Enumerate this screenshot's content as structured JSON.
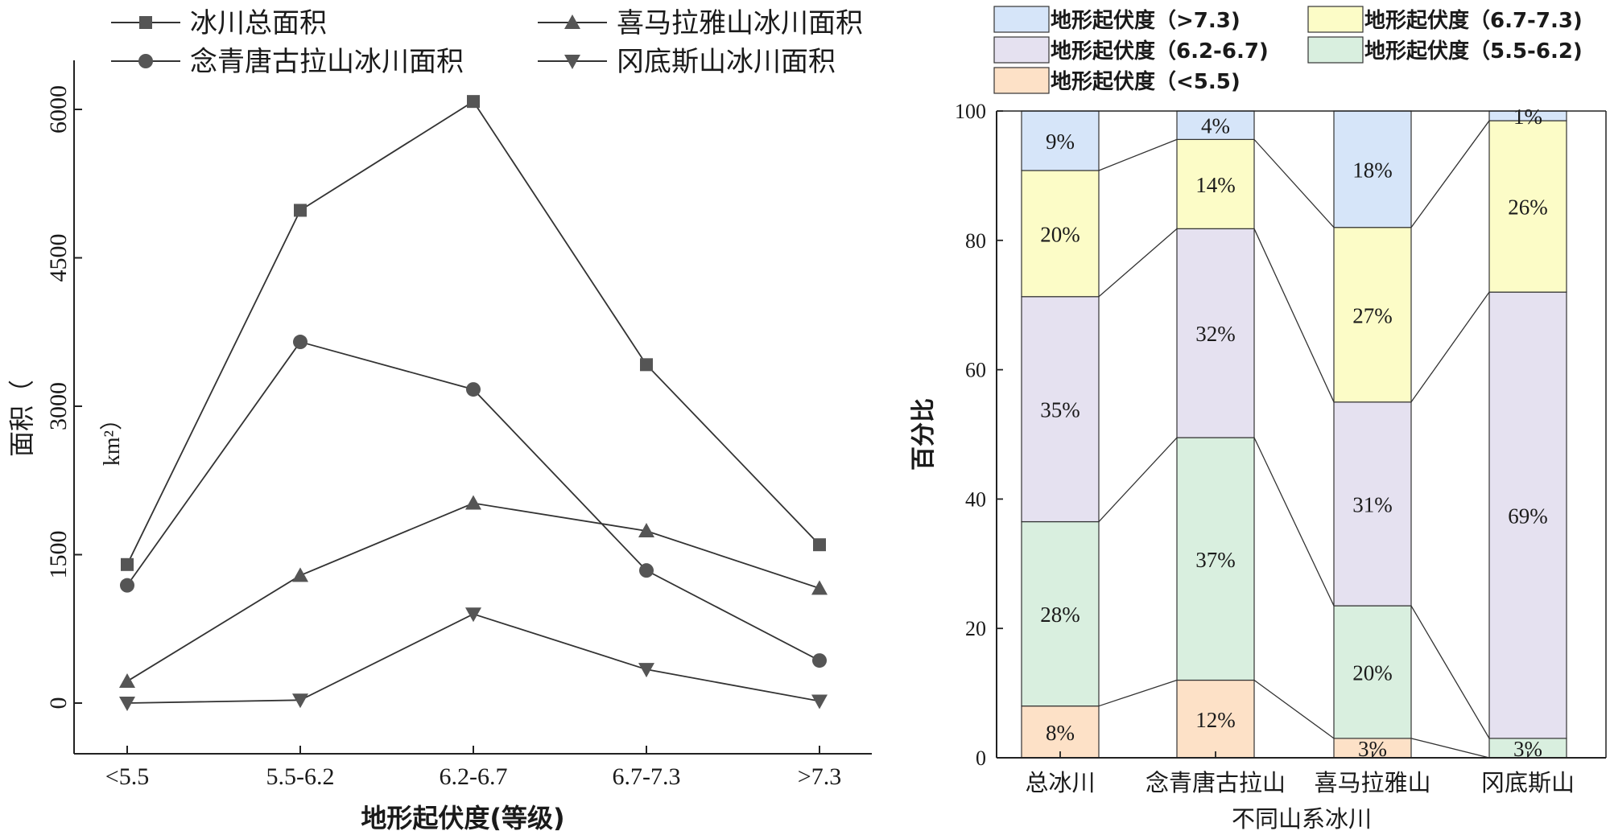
{
  "chart_data": [
    {
      "type": "line",
      "xlabel": "地形起伏度(等级)",
      "ylabel_part1": "面积（",
      "ylabel_part2": "km²）",
      "categories": [
        "<5.5",
        "5.5-6.2",
        "6.2-6.7",
        "6.7-7.3",
        ">7.3"
      ],
      "ylim": [
        -500,
        6500
      ],
      "yticks": [
        "0",
        "1500",
        "3000",
        "4500",
        "6000"
      ],
      "ytick_values": [
        0,
        1500,
        3000,
        4500,
        6000
      ],
      "legend_position": "top",
      "series": [
        {
          "name": "冰川总面积",
          "marker": "square",
          "values": [
            1400,
            4980,
            6080,
            3420,
            1600
          ]
        },
        {
          "name": "喜马拉雅山冰川面积",
          "marker": "triangle-up",
          "values": [
            220,
            1290,
            2020,
            1740,
            1160
          ]
        },
        {
          "name": "念青唐古拉山冰川面积",
          "marker": "circle",
          "values": [
            1190,
            3650,
            3170,
            1340,
            430
          ]
        },
        {
          "name": "冈底斯山冰川面积",
          "marker": "triangle-down",
          "values": [
            0,
            30,
            900,
            340,
            20
          ]
        }
      ]
    },
    {
      "type": "bar",
      "stacked": true,
      "xlabel": "不同山系冰川",
      "ylabel": "百分比",
      "categories": [
        "总冰川",
        "念青唐古拉山",
        "喜马拉雅山",
        "冈底斯山"
      ],
      "ylim": [
        0,
        100
      ],
      "yticks": [
        "0",
        "20",
        "40",
        "60",
        "80",
        "100"
      ],
      "ytick_values": [
        0,
        20,
        40,
        60,
        80,
        100
      ],
      "legend_position": "top",
      "series": [
        {
          "name": "地形起伏度（<5.5)",
          "color": "#fde1c7",
          "values": [
            8,
            12,
            3,
            0
          ],
          "labels": [
            "8%",
            "12%",
            "3%",
            ""
          ]
        },
        {
          "name": "地形起伏度（5.5-6.2)",
          "color": "#d9efdf",
          "values": [
            28.5,
            37.5,
            20.5,
            3
          ],
          "labels": [
            "28%",
            "37%",
            "20%",
            "3%"
          ]
        },
        {
          "name": "地形起伏度（6.2-6.7)",
          "color": "#e5e1f0",
          "values": [
            34.8,
            32.3,
            31.5,
            69
          ],
          "labels": [
            "35%",
            "32%",
            "31%",
            "69%"
          ]
        },
        {
          "name": "地形起伏度（6.7-7.3)",
          "color": "#fcfcc7",
          "values": [
            19.5,
            13.8,
            27,
            26.5
          ],
          "labels": [
            "20%",
            "14%",
            "27%",
            "26%"
          ]
        },
        {
          "name": "地形起伏度（>7.3)",
          "color": "#d6e5f9",
          "values": [
            9.2,
            4.4,
            18,
            1.5
          ],
          "labels": [
            "9%",
            "4%",
            "18%",
            "1%"
          ]
        }
      ]
    }
  ]
}
